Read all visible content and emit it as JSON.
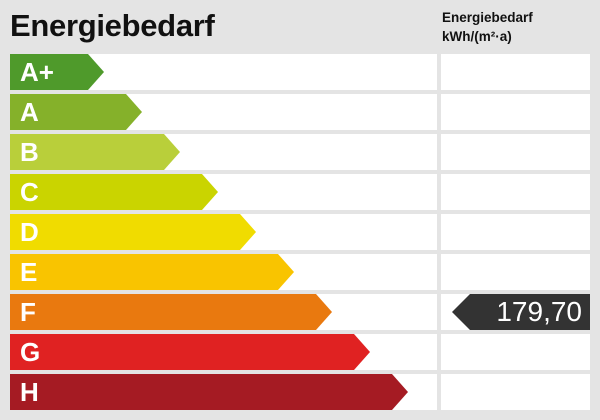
{
  "title": "Energiebedarf",
  "column_header": {
    "line1": "Energiebedarf",
    "line2": "kWh/(m²·a)"
  },
  "classes": [
    {
      "label": "A+",
      "color": "#4f9a2b"
    },
    {
      "label": "A",
      "color": "#85b12a"
    },
    {
      "label": "B",
      "color": "#b9cf3a"
    },
    {
      "label": "C",
      "color": "#cad400"
    },
    {
      "label": "D",
      "color": "#f0dc00"
    },
    {
      "label": "E",
      "color": "#f9c400"
    },
    {
      "label": "F",
      "color": "#e9790f"
    },
    {
      "label": "G",
      "color": "#e02222"
    },
    {
      "label": "H",
      "color": "#a51b23"
    }
  ],
  "value": {
    "text": "179,70",
    "class": "F",
    "color": "#333333"
  }
}
